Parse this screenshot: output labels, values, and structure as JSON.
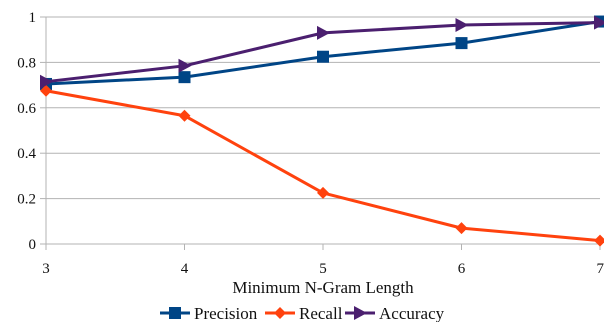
{
  "chart_data": {
    "type": "line",
    "title": "",
    "xlabel": "Minimum N-Gram Length",
    "ylabel": "",
    "x": [
      3,
      4,
      5,
      6,
      7
    ],
    "x_tick_labels": [
      "3",
      "4",
      "5",
      "6",
      "7"
    ],
    "ylim": [
      0,
      1
    ],
    "y_ticks": [
      0,
      0.2,
      0.4,
      0.6,
      0.8,
      1
    ],
    "y_tick_labels": [
      "0",
      "0.2",
      "0.4",
      "0.6",
      "0.8",
      "1"
    ],
    "grid": "horizontal",
    "legend_position": "bottom",
    "series": [
      {
        "name": "Precision",
        "values": [
          0.705,
          0.735,
          0.825,
          0.885,
          0.98
        ],
        "color": "#004586",
        "marker": "square"
      },
      {
        "name": "Recall",
        "values": [
          0.675,
          0.565,
          0.225,
          0.07,
          0.015
        ],
        "color": "#ff420e",
        "marker": "diamond"
      },
      {
        "name": "Accuracy",
        "values": [
          0.715,
          0.785,
          0.93,
          0.965,
          0.975
        ],
        "color": "#4b1f6f",
        "marker": "triangle-right"
      }
    ]
  }
}
